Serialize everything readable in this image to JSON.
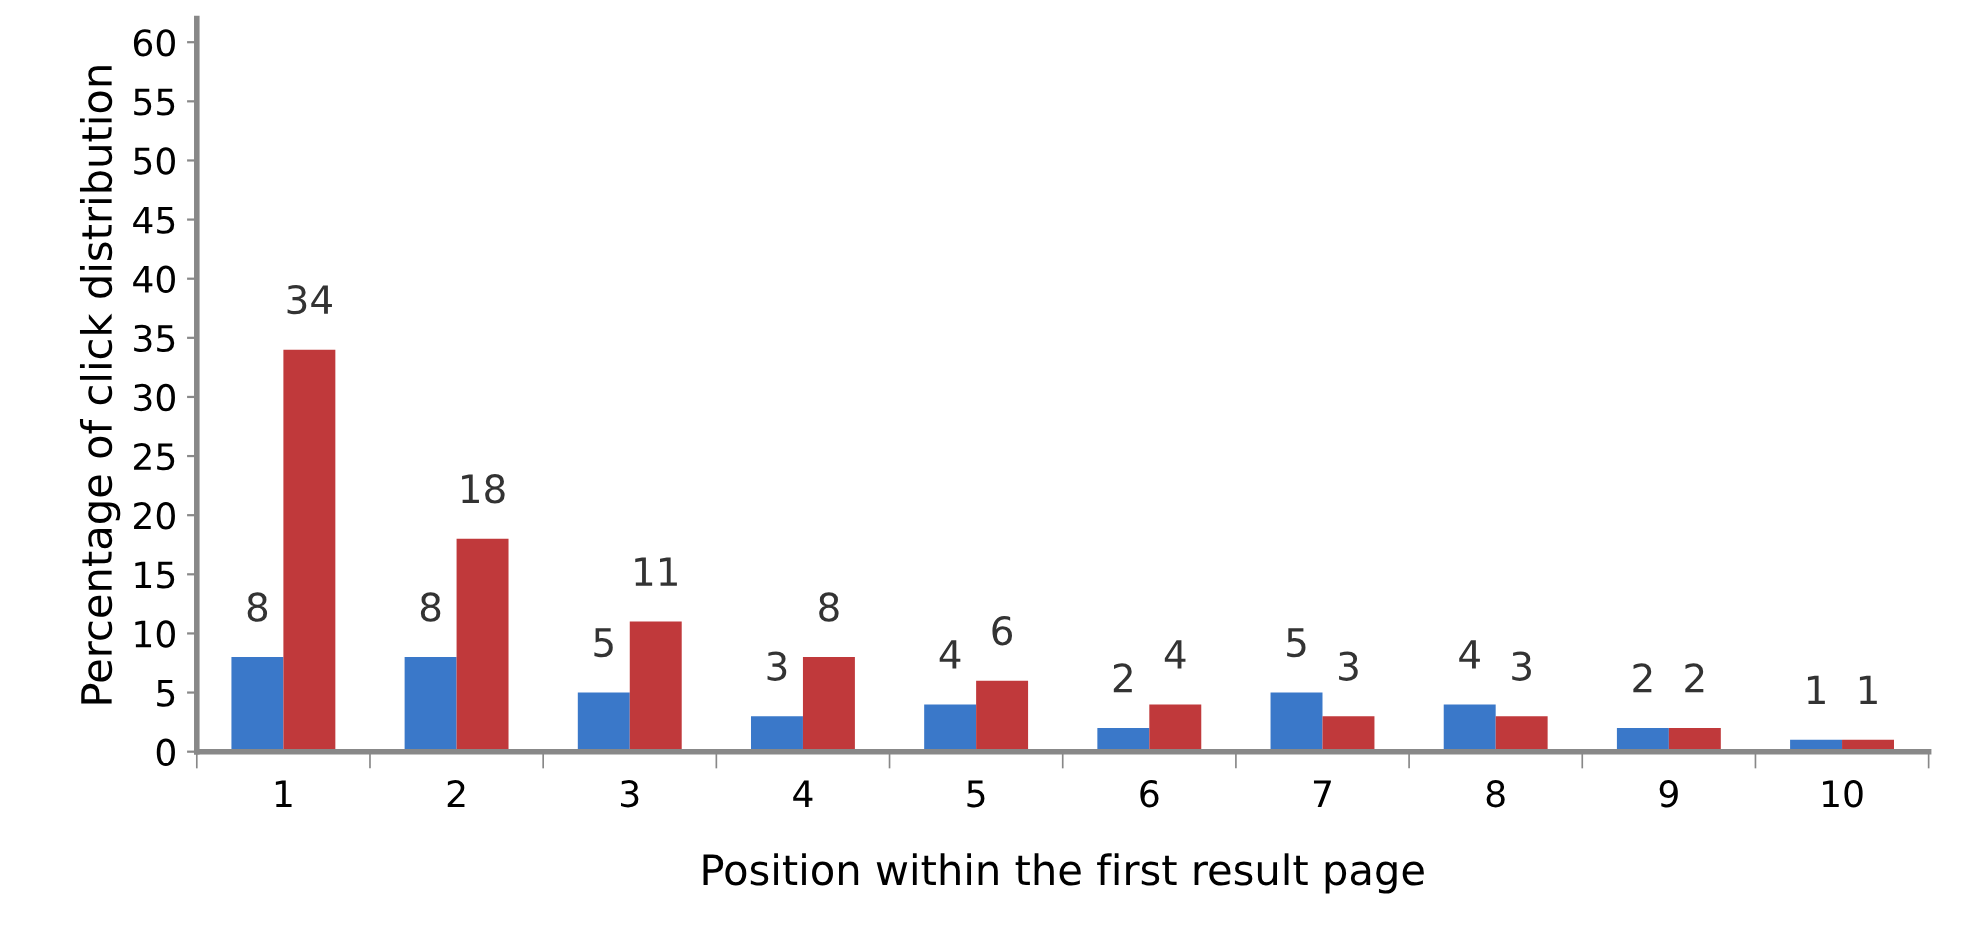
{
  "chart_data": {
    "type": "bar",
    "xlabel": "Position within the first result page",
    "ylabel": "Percentage of click distribution",
    "categories": [
      "1",
      "2",
      "3",
      "4",
      "5",
      "6",
      "7",
      "8",
      "9",
      "10"
    ],
    "series": [
      {
        "color": "#3a78c9",
        "values": [
          8,
          8,
          5,
          3,
          4,
          2,
          5,
          4,
          2,
          1
        ]
      },
      {
        "color": "#c0393b",
        "values": [
          34,
          18,
          11,
          8,
          6,
          4,
          3,
          3,
          2,
          1
        ]
      }
    ],
    "ylim": [
      0,
      62
    ],
    "yticks": [
      0,
      5,
      10,
      15,
      20,
      25,
      30,
      35,
      40,
      45,
      50,
      55,
      60
    ],
    "grid": false,
    "legend": false,
    "data_labels": true
  }
}
